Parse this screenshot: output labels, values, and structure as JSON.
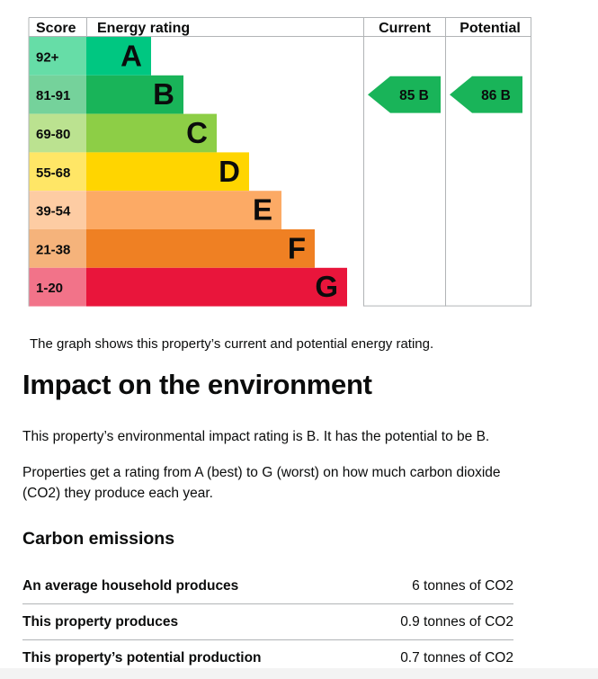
{
  "epc": {
    "headers": {
      "score": "Score",
      "energy_rating": "Energy rating",
      "current": "Current",
      "potential": "Potential"
    },
    "bands": [
      {
        "score": "92+",
        "letter": "A",
        "color": "#00c781",
        "score_bg": "#66dda7"
      },
      {
        "score": "81-91",
        "letter": "B",
        "color": "#19b459",
        "score_bg": "#75d29b"
      },
      {
        "score": "69-80",
        "letter": "C",
        "color": "#8dce46",
        "score_bg": "#bbe290"
      },
      {
        "score": "55-68",
        "letter": "D",
        "color": "#ffd500",
        "score_bg": "#ffe666"
      },
      {
        "score": "39-54",
        "letter": "E",
        "color": "#fcaa65",
        "score_bg": "#fdcca3"
      },
      {
        "score": "21-38",
        "letter": "F",
        "color": "#ef8023",
        "score_bg": "#f5b37b"
      },
      {
        "score": "1-20",
        "letter": "G",
        "color": "#e9153b",
        "score_bg": "#f27389"
      }
    ],
    "current": {
      "score": "85",
      "letter": "B",
      "band": 1,
      "color": "#19b459"
    },
    "potential": {
      "score": "86",
      "letter": "B",
      "band": 1,
      "color": "#19b459"
    }
  },
  "caption": "The graph shows this property’s current and potential energy rating.",
  "environment": {
    "title": "Impact on the environment",
    "para1": "This property’s environmental impact rating is B. It has the potential to be B.",
    "para2": "Properties get a rating from A (best) to G (worst) on how much carbon dioxide (CO2) they produce each year.",
    "subtitle": "Carbon emissions",
    "rows": [
      {
        "label": "An average household produces",
        "value": "6 tonnes of CO2"
      },
      {
        "label": "This property produces",
        "value": "0.9 tonnes of CO2"
      },
      {
        "label": "This property’s potential production",
        "value": "0.7 tonnes of CO2"
      }
    ]
  }
}
